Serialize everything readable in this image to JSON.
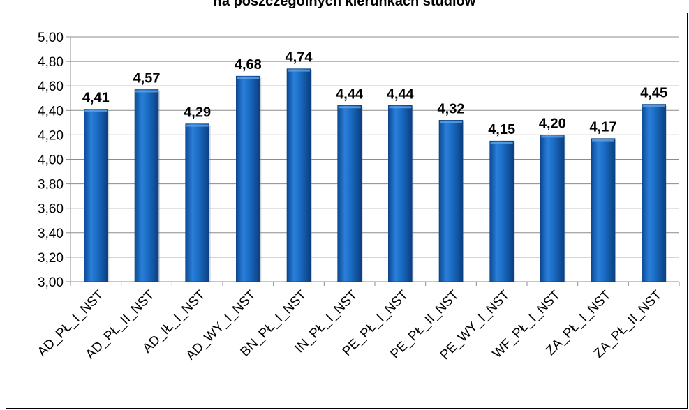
{
  "chart_data": {
    "type": "bar",
    "title": "na poszczególnych kierunkach studiów",
    "categories": [
      "AD_PŁ_I_NST",
      "AD_PŁ_II_NST",
      "AD_IŁ_I_NST",
      "AD_WY_I_NST",
      "BN_PŁ_I_NST",
      "IN_PŁ_I_NST",
      "PE_PŁ_I_NST",
      "PE_PŁ_II_NST",
      "PE_WY_I_NST",
      "WF_PŁ_I_NST",
      "ZA_PŁ_I_NST",
      "ZA_PŁ_II_NST"
    ],
    "values": [
      4.41,
      4.57,
      4.29,
      4.68,
      4.74,
      4.44,
      4.44,
      4.32,
      4.15,
      4.2,
      4.17,
      4.45
    ],
    "data_labels": [
      "4,41",
      "4,57",
      "4,29",
      "4,68",
      "4,74",
      "4,44",
      "4,44",
      "4,32",
      "4,15",
      "4,20",
      "4,17",
      "4,45"
    ],
    "ylim": [
      3.0,
      5.0
    ],
    "yticks": [
      "3,00",
      "3,20",
      "3,40",
      "3,60",
      "3,80",
      "4,00",
      "4,20",
      "4,40",
      "4,60",
      "4,80",
      "5,00"
    ],
    "grid": true,
    "bar_color": "#1565c0",
    "bar_highlight": "#5fa3e6",
    "bar_shadow": "#0b3f80",
    "grid_color": "#8c8c8c"
  }
}
